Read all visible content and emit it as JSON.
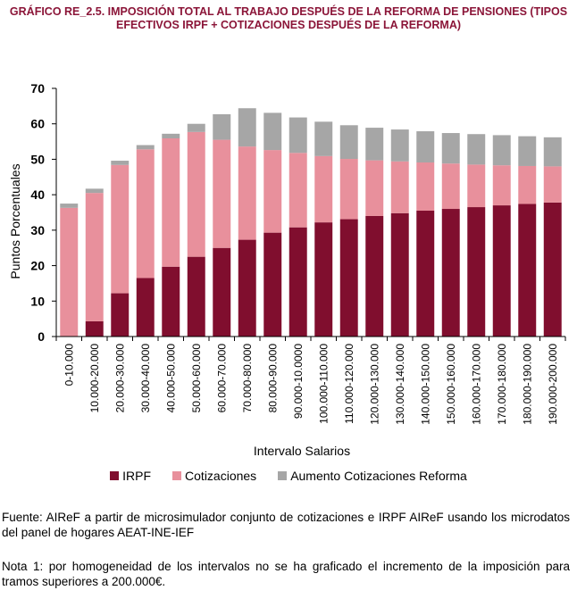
{
  "header": {
    "title_line1": "GRÁFICO RE_2.5.  IMPOSICIÓN TOTAL AL TRABAJO DESPUÉS DE LA REFORMA DE PENSIONES (TIPOS",
    "title_line2": "EFECTIVOS IRPF + COTIZACIONES DESPUÉS DE LA REFORMA)"
  },
  "chart_data": {
    "type": "bar",
    "stacked": true,
    "title": "GRÁFICO RE_2.5.  IMPOSICIÓN TOTAL AL TRABAJO DESPUÉS DE LA REFORMA DE PENSIONES (TIPOS EFECTIVOS IRPF + COTIZACIONES DESPUÉS DE LA REFORMA)",
    "xlabel": "Intervalo Salarios",
    "ylabel": "Puntos Porcentuales",
    "ylim": [
      0,
      70
    ],
    "yticks": [
      0,
      10,
      20,
      30,
      40,
      50,
      60,
      70
    ],
    "grid": false,
    "legend_position": "bottom",
    "categories": [
      "0-10.000",
      "10.000-20.000",
      "20.000-30.000",
      "30.000-40.000",
      "40.000-50.000",
      "50.000-60.000",
      "60.000-70.000",
      "70.000-80.000",
      "80.000-90.000",
      "90.000-10.0000",
      "100.000-110.000",
      "110.000-120.000",
      "120.000-130.000",
      "130.000-140.000",
      "140.000-150.000",
      "150.000-160.000",
      "160.000-170.000",
      "170.000-180.000",
      "180.000-190.000",
      "190.000-200.000"
    ],
    "series": [
      {
        "name": "IRPF",
        "color": "#800E2E",
        "values": [
          0,
          4.3,
          12.2,
          16.5,
          19.7,
          22.5,
          25.0,
          27.3,
          29.3,
          30.8,
          32.2,
          33.1,
          34.0,
          34.8,
          35.5,
          36.0,
          36.5,
          37.0,
          37.4,
          37.8
        ]
      },
      {
        "name": "Cotizaciones",
        "color": "#E8909C",
        "values": [
          36.3,
          36.2,
          36.2,
          36.3,
          36.2,
          35.2,
          30.5,
          26.3,
          23.3,
          21.0,
          18.7,
          17.0,
          15.7,
          14.6,
          13.6,
          12.8,
          12.0,
          11.3,
          10.7,
          10.2
        ]
      },
      {
        "name": "Aumento Cotizaciones Reforma",
        "color": "#A6A6A6",
        "values": [
          1.2,
          1.2,
          1.2,
          1.2,
          1.3,
          2.3,
          7.2,
          10.8,
          10.5,
          10.0,
          9.7,
          9.5,
          9.2,
          9.0,
          8.8,
          8.6,
          8.6,
          8.5,
          8.4,
          8.2
        ]
      }
    ]
  },
  "footer": {
    "source": "Fuente: AIReF a partir de microsimulador conjunto de cotizaciones e IRPF AIReF usando los microdatos del panel de hogares AEAT-INE-IEF",
    "note": "Nota 1: por homogeneidad de los intervalos no se ha graficado el incremento de la imposición para tramos superiores a 200.000€."
  }
}
